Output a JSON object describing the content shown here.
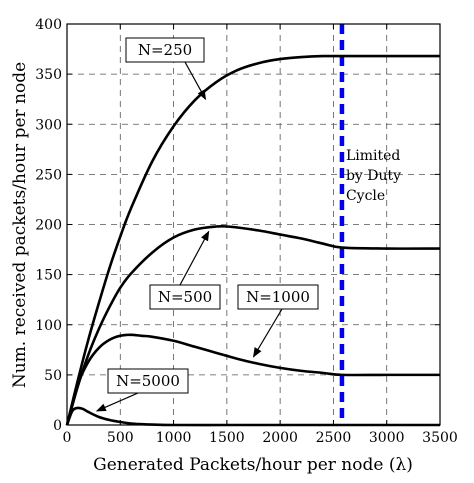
{
  "chart_data": {
    "type": "line",
    "xlabel": "Generated Packets/hour per node (λ)",
    "ylabel": "Num. received packets/hour per node",
    "xlim": [
      0,
      3500
    ],
    "ylim": [
      0,
      400
    ],
    "xticks": [
      0,
      500,
      1000,
      1500,
      2000,
      2500,
      3000,
      3500
    ],
    "yticks": [
      0,
      50,
      100,
      150,
      200,
      250,
      300,
      350,
      400
    ],
    "grid": true,
    "duty_cycle_limit": {
      "x": 2580,
      "label_lines": [
        "Limited",
        "by Duty",
        "Cycle"
      ],
      "color": "#0000ee"
    },
    "series": [
      {
        "name": "N=250",
        "x": [
          0,
          100,
          200,
          300,
          400,
          500,
          600,
          800,
          1000,
          1200,
          1400,
          1600,
          1800,
          2000,
          2200,
          2400,
          2580,
          3000,
          3500
        ],
        "y": [
          0,
          44,
          85,
          122,
          157,
          188,
          216,
          263,
          298,
          324,
          342,
          354,
          361,
          365,
          367,
          368,
          368,
          368,
          368
        ]
      },
      {
        "name": "N=500",
        "x": [
          0,
          100,
          200,
          300,
          400,
          500,
          600,
          800,
          1000,
          1200,
          1400,
          1500,
          1600,
          1800,
          2000,
          2200,
          2400,
          2580,
          3000,
          3500
        ],
        "y": [
          0,
          38,
          70,
          96,
          118,
          137,
          151,
          172,
          187,
          195,
          198,
          198,
          197,
          194,
          190,
          186,
          181,
          177,
          176,
          176
        ]
      },
      {
        "name": "N=1000",
        "x": [
          0,
          100,
          200,
          300,
          400,
          500,
          600,
          700,
          800,
          1000,
          1200,
          1400,
          1600,
          1800,
          2000,
          2200,
          2400,
          2580,
          3000,
          3500
        ],
        "y": [
          0,
          40,
          63,
          77,
          85,
          89,
          90,
          89,
          88,
          84,
          78,
          72,
          66,
          61,
          57,
          54,
          52,
          50,
          50,
          50
        ]
      },
      {
        "name": "N=5000",
        "x": [
          0,
          50,
          100,
          150,
          200,
          300,
          400,
          500,
          600,
          700,
          800,
          1000,
          1500,
          2000,
          2580,
          3000,
          3500
        ],
        "y": [
          0,
          14,
          17,
          16,
          13,
          8,
          5,
          3,
          1.5,
          0.8,
          0.4,
          0,
          0,
          0,
          0,
          0,
          0
        ]
      }
    ],
    "annotations": [
      {
        "text": "N=250",
        "target_x": 1300,
        "target_y": 325
      },
      {
        "text": "N=500",
        "target_x": 1330,
        "target_y": 193
      },
      {
        "text": "N=1000",
        "target_x": 1750,
        "target_y": 68
      },
      {
        "text": "N=5000",
        "target_x": 280,
        "target_y": 14
      }
    ]
  }
}
